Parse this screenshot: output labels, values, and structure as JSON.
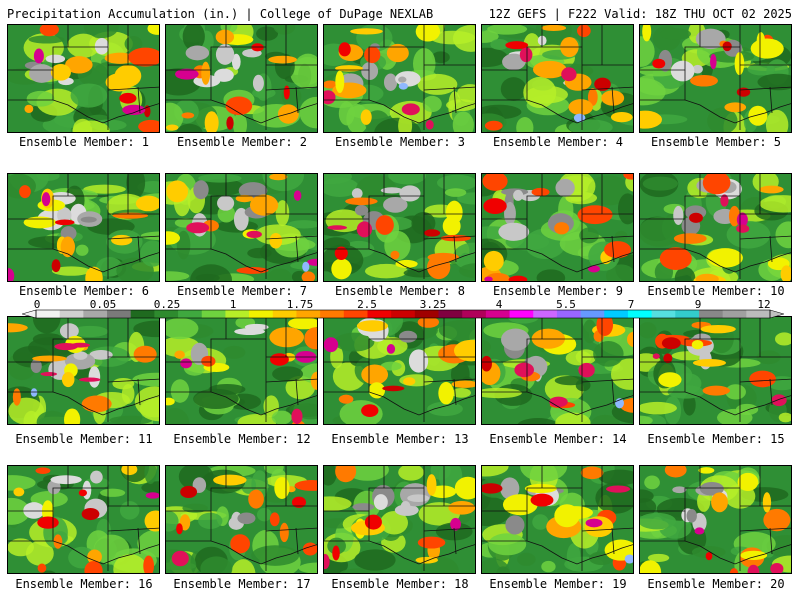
{
  "header": {
    "left": "Precipitation Accumulation (in.) | College of DuPage NEXLAB",
    "right": "12Z GEFS | F222 Valid: 18Z THU OCT 02 2025"
  },
  "members": [
    "Ensemble Member: 1",
    "Ensemble Member: 2",
    "Ensemble Member: 3",
    "Ensemble Member: 4",
    "Ensemble Member: 5",
    "Ensemble Member: 6",
    "Ensemble Member: 7",
    "Ensemble Member: 8",
    "Ensemble Member: 9",
    "Ensemble Member: 10",
    "Ensemble Member: 11",
    "Ensemble Member: 12",
    "Ensemble Member: 13",
    "Ensemble Member: 14",
    "Ensemble Member: 15",
    "Ensemble Member: 16",
    "Ensemble Member: 17",
    "Ensemble Member: 18",
    "Ensemble Member: 19",
    "Ensemble Member: 20"
  ],
  "colorbar": {
    "labels": [
      "0",
      "0.05",
      "0.25",
      "1",
      "1.75",
      "2.5",
      "3.25",
      "4",
      "5.5",
      "7",
      "9",
      "12"
    ],
    "colors": [
      "#f2f2f2",
      "#d0d0d0",
      "#a8a8a8",
      "#7a7a7a",
      "#1f6a1f",
      "#2e8b2e",
      "#3fa83f",
      "#6fd23f",
      "#b6ee28",
      "#f2f200",
      "#ffcc00",
      "#ffa500",
      "#ff7a00",
      "#ff4500",
      "#f00000",
      "#cc0000",
      "#a00000",
      "#800040",
      "#b0005a",
      "#d6008f",
      "#ff00ff",
      "#cc66ff",
      "#9966ff",
      "#6699ff",
      "#00ccff",
      "#00ffff",
      "#55e0e0",
      "#33cccc",
      "#888888",
      "#a0a0a0",
      "#bbbbbb"
    ]
  }
}
